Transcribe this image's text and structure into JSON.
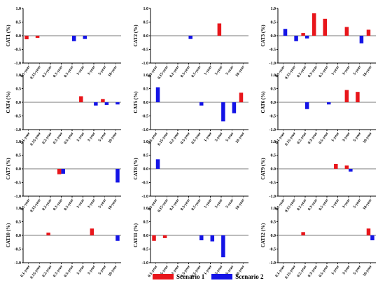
{
  "legend": {
    "scenario1": {
      "label": "Scenario 1",
      "color": "#e8161b"
    },
    "scenario2": {
      "label": "Scenario 2",
      "color": "#1414e6"
    }
  },
  "chart_data": [
    {
      "type": "bar",
      "ylabel": "CAT1 (%)",
      "ylim": [
        -1.0,
        1.0
      ],
      "yticks": [
        "1.0",
        "0.5",
        "0.0",
        "-0.5",
        "-1.0"
      ],
      "categories": [
        "0.1-year",
        "0.15-year",
        "0.2-year",
        "0.3-year",
        "0.5-year",
        "1-year",
        "3-year",
        "5-year",
        "10-year"
      ],
      "series": [
        {
          "name": "Scenario 1",
          "values": [
            -0.13,
            -0.08,
            0,
            0,
            0,
            0,
            0,
            0,
            0
          ]
        },
        {
          "name": "Scenario 2",
          "values": [
            0,
            0,
            0,
            0,
            -0.2,
            -0.12,
            0,
            0,
            0
          ]
        }
      ]
    },
    {
      "type": "bar",
      "ylabel": "CAT2 (%)",
      "ylim": [
        -1.0,
        1.0
      ],
      "yticks": [
        "1.0",
        "0.5",
        "0.0",
        "-0.5",
        "-1.0"
      ],
      "categories": [
        "0.1-year",
        "0.15-year",
        "0.2-year",
        "0.3-year",
        "0.5-year",
        "1-year",
        "3-year",
        "5-year",
        "10-year"
      ],
      "series": [
        {
          "name": "Scenario 1",
          "values": [
            0,
            0,
            0,
            0,
            0,
            0,
            0.45,
            0,
            0
          ]
        },
        {
          "name": "Scenario 2",
          "values": [
            0,
            0,
            0,
            -0.12,
            0,
            0,
            0,
            0,
            0
          ]
        }
      ]
    },
    {
      "type": "bar",
      "ylabel": "CAT3 (%)",
      "ylim": [
        -1.0,
        1.0
      ],
      "yticks": [
        "1.0",
        "0.5",
        "0.0",
        "-0.5",
        "-1.0"
      ],
      "categories": [
        "0.1-year",
        "0.15-year",
        "0.2-year",
        "0.3-year",
        "0.5-year",
        "1-year",
        "3-year",
        "5-year",
        "10-year"
      ],
      "series": [
        {
          "name": "Scenario 1",
          "values": [
            0,
            0,
            0.1,
            0.82,
            0.62,
            0,
            0.32,
            0,
            0.22
          ]
        },
        {
          "name": "Scenario 2",
          "values": [
            0.25,
            -0.2,
            -0.1,
            0,
            0,
            0,
            0,
            -0.28,
            0
          ]
        }
      ]
    },
    {
      "type": "bar",
      "ylabel": "CAT4 (%)",
      "ylim": [
        -1.0,
        1.0
      ],
      "yticks": [
        "1.0",
        "0.5",
        "0.0",
        "-0.5",
        "-1.0"
      ],
      "categories": [
        "0.1-year",
        "0.15-year",
        "0.2-year",
        "0.3-year",
        "0.5-year",
        "1-year",
        "3-year",
        "5-year",
        "10-year"
      ],
      "series": [
        {
          "name": "Scenario 1",
          "values": [
            0,
            0,
            0,
            0,
            0,
            0.22,
            0,
            0.12,
            0
          ]
        },
        {
          "name": "Scenario 2",
          "values": [
            0,
            0,
            0,
            0,
            0,
            0,
            -0.12,
            -0.1,
            -0.08
          ]
        }
      ]
    },
    {
      "type": "bar",
      "ylabel": "CAT5 (%)",
      "ylim": [
        -1.0,
        1.0
      ],
      "yticks": [
        "1.0",
        "0.5",
        "0.0",
        "-0.5",
        "-1.0"
      ],
      "categories": [
        "0.1-year",
        "0.15-year",
        "0.2-year",
        "0.3-year",
        "0.5-year",
        "1-year",
        "3-year",
        "5-year",
        "10-year"
      ],
      "series": [
        {
          "name": "Scenario 1",
          "values": [
            0,
            0,
            0,
            0,
            0,
            0,
            0,
            0,
            0.35
          ]
        },
        {
          "name": "Scenario 2",
          "values": [
            0.55,
            0,
            0,
            0,
            -0.12,
            0,
            -0.7,
            -0.4,
            0
          ]
        }
      ]
    },
    {
      "type": "bar",
      "ylabel": "CAT6 (%)",
      "ylim": [
        -1.0,
        1.0
      ],
      "yticks": [
        "1.0",
        "0.5",
        "0.0",
        "-0.5",
        "-1.0"
      ],
      "categories": [
        "0.1-year",
        "0.15-year",
        "0.2-year",
        "0.3-year",
        "0.5-year",
        "1-year",
        "3-year",
        "5-year",
        "10-year"
      ],
      "series": [
        {
          "name": "Scenario 1",
          "values": [
            0,
            0,
            0,
            0,
            0,
            0,
            0.45,
            0.38,
            0
          ]
        },
        {
          "name": "Scenario 2",
          "values": [
            0,
            0,
            -0.25,
            0,
            -0.08,
            0,
            0,
            0,
            0
          ]
        }
      ]
    },
    {
      "type": "bar",
      "ylabel": "CAT7 (%)",
      "ylim": [
        -1.0,
        1.0
      ],
      "yticks": [
        "1.0",
        "0.5",
        "0.0",
        "-0.5",
        "-1.0"
      ],
      "categories": [
        "0.1-year",
        "0.15-year",
        "0.2-year",
        "0.3-year",
        "0.5-year",
        "1-year",
        "3-year",
        "5-year",
        "10-year"
      ],
      "series": [
        {
          "name": "Scenario 1",
          "values": [
            0,
            0,
            0,
            -0.2,
            0,
            0,
            0,
            0,
            0
          ]
        },
        {
          "name": "Scenario 2",
          "values": [
            0,
            0,
            0,
            -0.18,
            0,
            0,
            0,
            0,
            -0.5
          ]
        }
      ]
    },
    {
      "type": "bar",
      "ylabel": "CAT8 (%)",
      "ylim": [
        -1.0,
        1.0
      ],
      "yticks": [
        "1.0",
        "0.5",
        "0.0",
        "-0.5",
        "-1.0"
      ],
      "categories": [
        "0.1-year",
        "0.15-year",
        "0.2-year",
        "0.3-year",
        "0.5-year",
        "1-year",
        "3-year",
        "5-year",
        "10-year"
      ],
      "series": [
        {
          "name": "Scenario 1",
          "values": [
            0,
            0,
            0,
            0,
            0,
            0,
            0,
            0,
            0
          ]
        },
        {
          "name": "Scenario 2",
          "values": [
            0.35,
            0,
            0,
            0,
            0,
            0,
            0,
            0,
            0
          ]
        }
      ]
    },
    {
      "type": "bar",
      "ylabel": "CAT9 (%)",
      "ylim": [
        -1.0,
        1.0
      ],
      "yticks": [
        "1.0",
        "0.5",
        "0.0",
        "-0.5",
        "-1.0"
      ],
      "categories": [
        "0.1-year",
        "0.15-year",
        "0.2-year",
        "0.3-year",
        "0.5-year",
        "1-year",
        "3-year",
        "5-year",
        "10-year"
      ],
      "series": [
        {
          "name": "Scenario 1",
          "values": [
            0,
            0,
            0,
            0,
            0,
            0.18,
            0.12,
            0,
            0
          ]
        },
        {
          "name": "Scenario 2",
          "values": [
            0,
            0,
            0,
            0,
            0,
            0,
            -0.1,
            0,
            0
          ]
        }
      ]
    },
    {
      "type": "bar",
      "ylabel": "CAT10 (%)",
      "ylim": [
        -1.0,
        1.0
      ],
      "yticks": [
        "1.0",
        "0.5",
        "0.0",
        "-0.5",
        "-1.0"
      ],
      "categories": [
        "0.1-year",
        "0.15-year",
        "0.2-year",
        "0.3-year",
        "0.5-year",
        "1-year",
        "3-year",
        "5-year",
        "10-year"
      ],
      "series": [
        {
          "name": "Scenario 1",
          "values": [
            0,
            0,
            0.1,
            0,
            0,
            0,
            0.25,
            0,
            0
          ]
        },
        {
          "name": "Scenario 2",
          "values": [
            0,
            0,
            0,
            0,
            0,
            0,
            0,
            0,
            -0.2
          ]
        }
      ]
    },
    {
      "type": "bar",
      "ylabel": "CAT11 (%)",
      "ylim": [
        -1.0,
        1.0
      ],
      "yticks": [
        "1.0",
        "0.5",
        "0.0",
        "-0.5",
        "-1.0"
      ],
      "categories": [
        "0.1-year",
        "0.15-year",
        "0.2-year",
        "0.3-year",
        "0.5-year",
        "1-year",
        "3-year",
        "5-year",
        "10-year"
      ],
      "series": [
        {
          "name": "Scenario 1",
          "values": [
            -0.2,
            -0.1,
            0,
            0,
            0,
            0,
            0,
            0,
            0
          ]
        },
        {
          "name": "Scenario 2",
          "values": [
            0,
            0,
            0,
            0,
            -0.18,
            -0.22,
            -0.8,
            0,
            0
          ]
        }
      ]
    },
    {
      "type": "bar",
      "ylabel": "CAT12 (%)",
      "ylim": [
        -1.0,
        1.0
      ],
      "yticks": [
        "1.0",
        "0.5",
        "0.0",
        "-0.5",
        "-1.0"
      ],
      "categories": [
        "0.1-year",
        "0.15-year",
        "0.2-year",
        "0.3-year",
        "0.5-year",
        "1-year",
        "3-year",
        "5-year",
        "10-year"
      ],
      "series": [
        {
          "name": "Scenario 1",
          "values": [
            0,
            0,
            0.12,
            0,
            0,
            0,
            0,
            0,
            0.25
          ]
        },
        {
          "name": "Scenario 2",
          "values": [
            0,
            0,
            0,
            0,
            0,
            0,
            0,
            0,
            -0.18
          ]
        }
      ]
    }
  ]
}
